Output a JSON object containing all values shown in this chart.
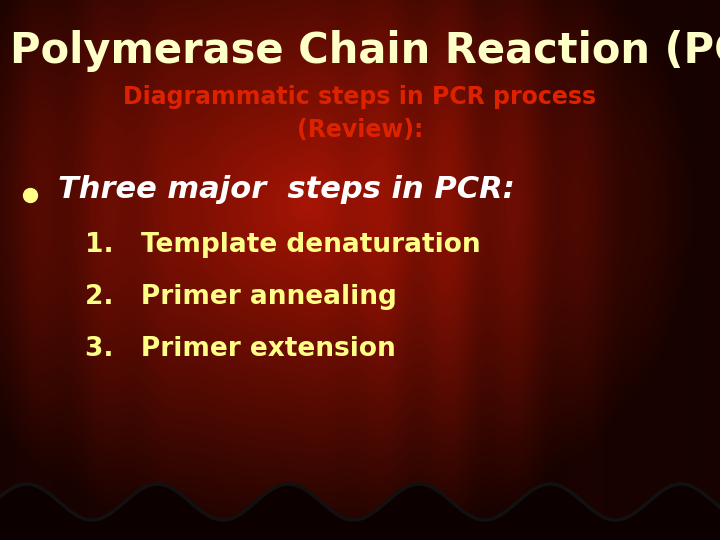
{
  "title": "Polymerase Chain Reaction (PCR)",
  "title_color": "#FFFFC8",
  "title_fontsize": 30,
  "subtitle": "Diagrammatic steps in PCR process\n(Review):",
  "subtitle_color": "#DD2200",
  "subtitle_fontsize": 17,
  "bullet_text": "Three major  steps in PCR:",
  "bullet_color": "#FFFFFF",
  "bullet_fontsize": 22,
  "bullet_dot_color": "#FFFF88",
  "items": [
    "1.   Template denaturation",
    "2.   Primer annealing",
    "3.   Primer extension"
  ],
  "items_color": "#FFFF88",
  "items_fontsize": 19
}
